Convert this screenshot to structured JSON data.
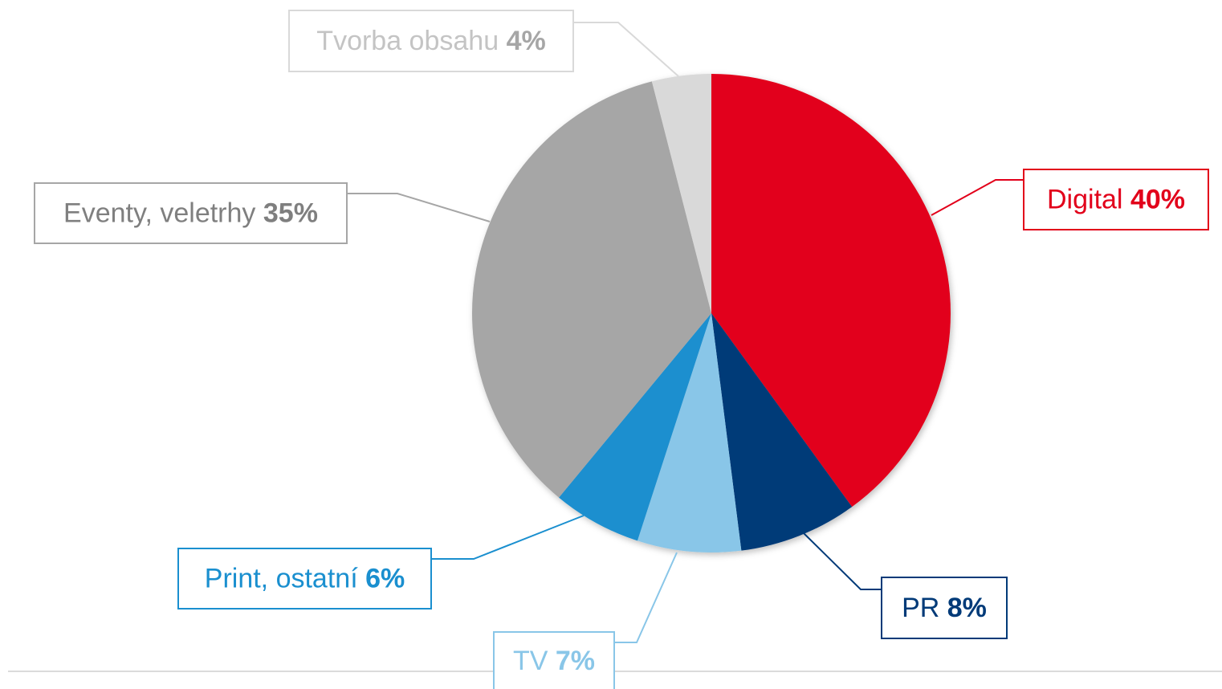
{
  "chart_data": {
    "type": "pie",
    "categories": [
      "Digital",
      "PR",
      "TV",
      "Print, ostatní",
      "Eventy, veletrhy",
      "Tvorba obsahu"
    ],
    "values": [
      40,
      8,
      7,
      6,
      35,
      4
    ],
    "value_labels": [
      "40%",
      "8%",
      "7%",
      "6%",
      "35%",
      "4%"
    ],
    "colors": [
      "#e2001a",
      "#003a78",
      "#89c6e8",
      "#1a8fcf",
      "#a6a6a6",
      "#d9d9d9"
    ]
  }
}
